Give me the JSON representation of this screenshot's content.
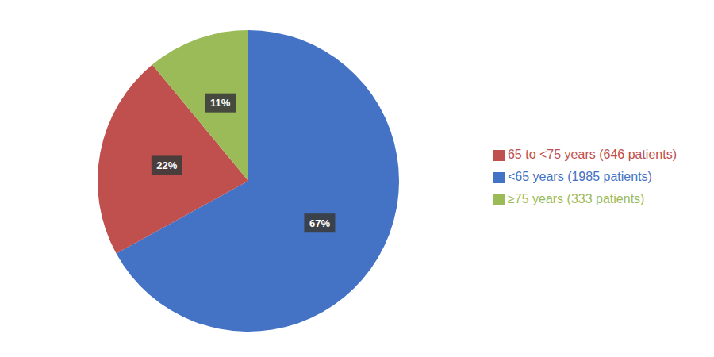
{
  "chart_data": {
    "type": "pie",
    "categories": [
      "<65 years (1985 patients)",
      "65 to <75 years (646 patients)",
      "≥75 years (333 patients)"
    ],
    "values": [
      67,
      22,
      11
    ],
    "value_labels": [
      "67%",
      "22%",
      "11%"
    ],
    "colors": [
      "#4472C4",
      "#C0504D",
      "#9BBB59"
    ],
    "data_labels": true,
    "legend": "right"
  }
}
